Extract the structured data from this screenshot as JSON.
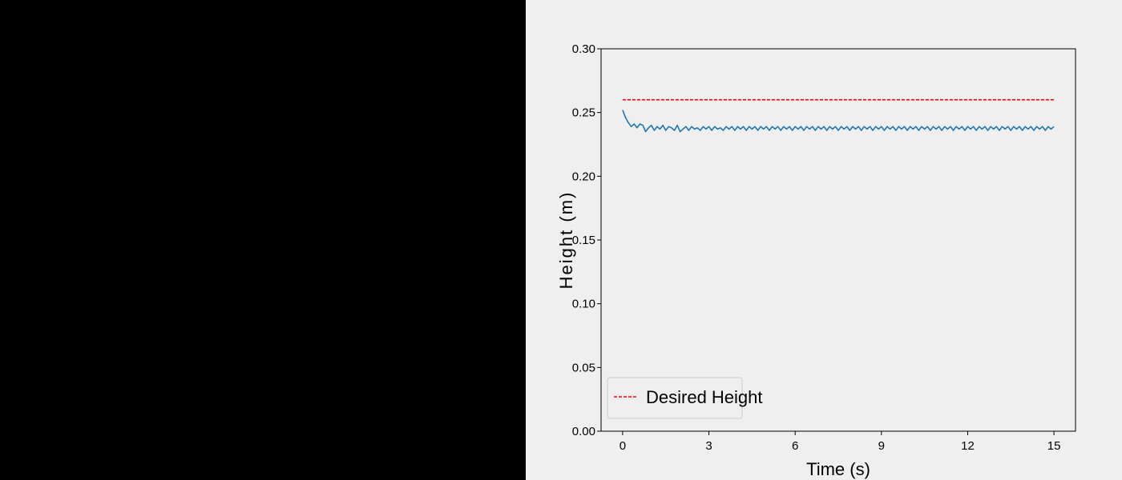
{
  "chart_data": {
    "type": "line",
    "title": "",
    "xlabel": "Time (s)",
    "ylabel": "Height (m)",
    "xlim": [
      -0.75,
      15.75
    ],
    "ylim": [
      0.0,
      0.3
    ],
    "xticks": [
      0,
      3,
      6,
      9,
      12,
      15
    ],
    "yticks": [
      0.0,
      0.05,
      0.1,
      0.15,
      0.2,
      0.25,
      0.3
    ],
    "xtick_labels": [
      "0",
      "3",
      "6",
      "9",
      "12",
      "15"
    ],
    "ytick_labels": [
      "0.00",
      "0.05",
      "0.10",
      "0.15",
      "0.20",
      "0.25",
      "0.30"
    ],
    "grid": false,
    "legend_position": "lower-left",
    "series": [
      {
        "name": "Desired Height",
        "style": "dashed",
        "color": "#ff0000",
        "x": [
          0,
          15
        ],
        "y": [
          0.26,
          0.26
        ]
      },
      {
        "style": "solid",
        "color": "#1f77b4",
        "x": [
          0.0,
          0.1,
          0.2,
          0.3,
          0.4,
          0.5,
          0.6,
          0.7,
          0.8,
          0.9,
          1.0,
          1.1,
          1.2,
          1.3,
          1.4,
          1.5,
          1.6,
          1.7,
          1.8,
          1.9,
          2.0,
          2.1,
          2.2,
          2.3,
          2.4,
          2.5,
          2.6,
          2.7,
          2.8,
          2.9,
          3.0,
          3.1,
          3.2,
          3.3,
          3.4,
          3.5,
          3.6,
          3.7,
          3.8,
          3.9,
          4.0,
          4.1,
          4.2,
          4.3,
          4.4,
          4.5,
          4.6,
          4.7,
          4.8,
          4.9,
          5.0,
          5.1,
          5.2,
          5.3,
          5.4,
          5.5,
          5.6,
          5.7,
          5.8,
          5.9,
          6.0,
          6.1,
          6.2,
          6.3,
          6.4,
          6.5,
          6.6,
          6.7,
          6.8,
          6.9,
          7.0,
          7.1,
          7.2,
          7.3,
          7.4,
          7.5,
          7.6,
          7.7,
          7.8,
          7.9,
          8.0,
          8.1,
          8.2,
          8.3,
          8.4,
          8.5,
          8.6,
          8.7,
          8.8,
          8.9,
          9.0,
          9.1,
          9.2,
          9.3,
          9.4,
          9.5,
          9.6,
          9.7,
          9.8,
          9.9,
          10.0,
          10.1,
          10.2,
          10.3,
          10.4,
          10.5,
          10.6,
          10.7,
          10.8,
          10.9,
          11.0,
          11.1,
          11.2,
          11.3,
          11.4,
          11.5,
          11.6,
          11.7,
          11.8,
          11.9,
          12.0,
          12.1,
          12.2,
          12.3,
          12.4,
          12.5,
          12.6,
          12.7,
          12.8,
          12.9,
          13.0,
          13.1,
          13.2,
          13.3,
          13.4,
          13.5,
          13.6,
          13.7,
          13.8,
          13.9,
          14.0,
          14.1,
          14.2,
          14.3,
          14.4,
          14.5,
          14.6,
          14.7,
          14.8,
          14.9,
          15.0
        ],
        "y": [
          0.252,
          0.246,
          0.242,
          0.239,
          0.241,
          0.238,
          0.241,
          0.24,
          0.235,
          0.238,
          0.24,
          0.236,
          0.239,
          0.237,
          0.24,
          0.236,
          0.239,
          0.238,
          0.236,
          0.24,
          0.235,
          0.237,
          0.239,
          0.236,
          0.239,
          0.237,
          0.238,
          0.236,
          0.239,
          0.237,
          0.239,
          0.236,
          0.239,
          0.237,
          0.238,
          0.236,
          0.239,
          0.237,
          0.239,
          0.236,
          0.239,
          0.237,
          0.239,
          0.236,
          0.239,
          0.237,
          0.239,
          0.236,
          0.239,
          0.237,
          0.239,
          0.236,
          0.239,
          0.237,
          0.239,
          0.236,
          0.239,
          0.237,
          0.239,
          0.236,
          0.239,
          0.237,
          0.239,
          0.236,
          0.239,
          0.237,
          0.239,
          0.236,
          0.239,
          0.237,
          0.239,
          0.236,
          0.239,
          0.237,
          0.239,
          0.236,
          0.239,
          0.237,
          0.239,
          0.236,
          0.239,
          0.237,
          0.239,
          0.236,
          0.239,
          0.237,
          0.239,
          0.236,
          0.239,
          0.237,
          0.239,
          0.236,
          0.239,
          0.237,
          0.239,
          0.236,
          0.239,
          0.237,
          0.239,
          0.236,
          0.239,
          0.237,
          0.239,
          0.236,
          0.239,
          0.237,
          0.239,
          0.236,
          0.239,
          0.237,
          0.239,
          0.236,
          0.239,
          0.237,
          0.239,
          0.236,
          0.239,
          0.237,
          0.239,
          0.236,
          0.239,
          0.237,
          0.239,
          0.236,
          0.239,
          0.237,
          0.239,
          0.236,
          0.239,
          0.237,
          0.239,
          0.236,
          0.239,
          0.237,
          0.239,
          0.236,
          0.239,
          0.237,
          0.239,
          0.236,
          0.239,
          0.237,
          0.239,
          0.236,
          0.239,
          0.237,
          0.239,
          0.236,
          0.239,
          0.237,
          0.239
        ]
      }
    ]
  }
}
